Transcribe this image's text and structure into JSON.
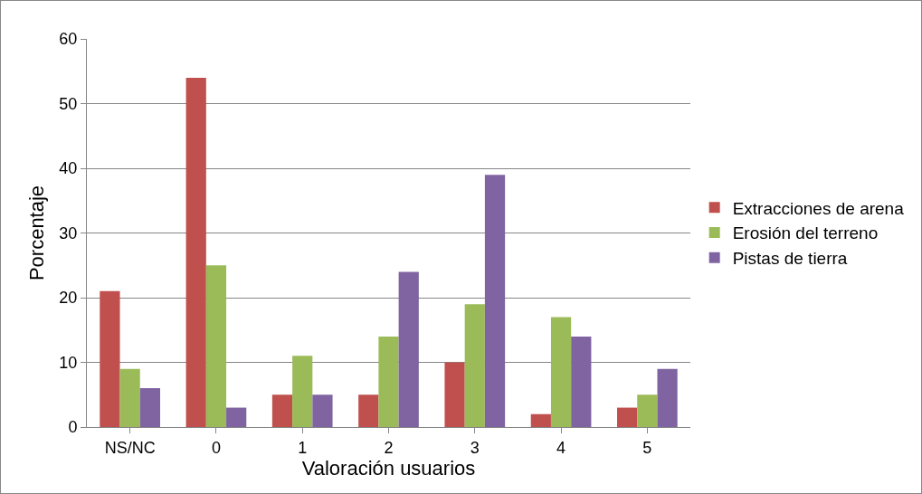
{
  "chart_data": {
    "type": "bar",
    "xlabel": "Valoración usuarios",
    "ylabel": "Porcentaje",
    "categories": [
      "NS/NC",
      "0",
      "1",
      "2",
      "3",
      "4",
      "5"
    ],
    "series": [
      {
        "name": "Extracciones de arena",
        "color": "#c0504d",
        "values": [
          21,
          54,
          5,
          5,
          10,
          2,
          3
        ]
      },
      {
        "name": "Erosión del terreno",
        "color": "#9bbb59",
        "values": [
          9,
          25,
          11,
          14,
          19,
          17,
          5
        ]
      },
      {
        "name": "Pistas de tierra",
        "color": "#8064a2",
        "values": [
          6,
          3,
          5,
          24,
          39,
          14,
          9
        ]
      }
    ],
    "ylim": [
      0,
      60
    ],
    "yticks": [
      0,
      10,
      20,
      30,
      40,
      50,
      60
    ],
    "grid": "y",
    "legend": "right"
  }
}
